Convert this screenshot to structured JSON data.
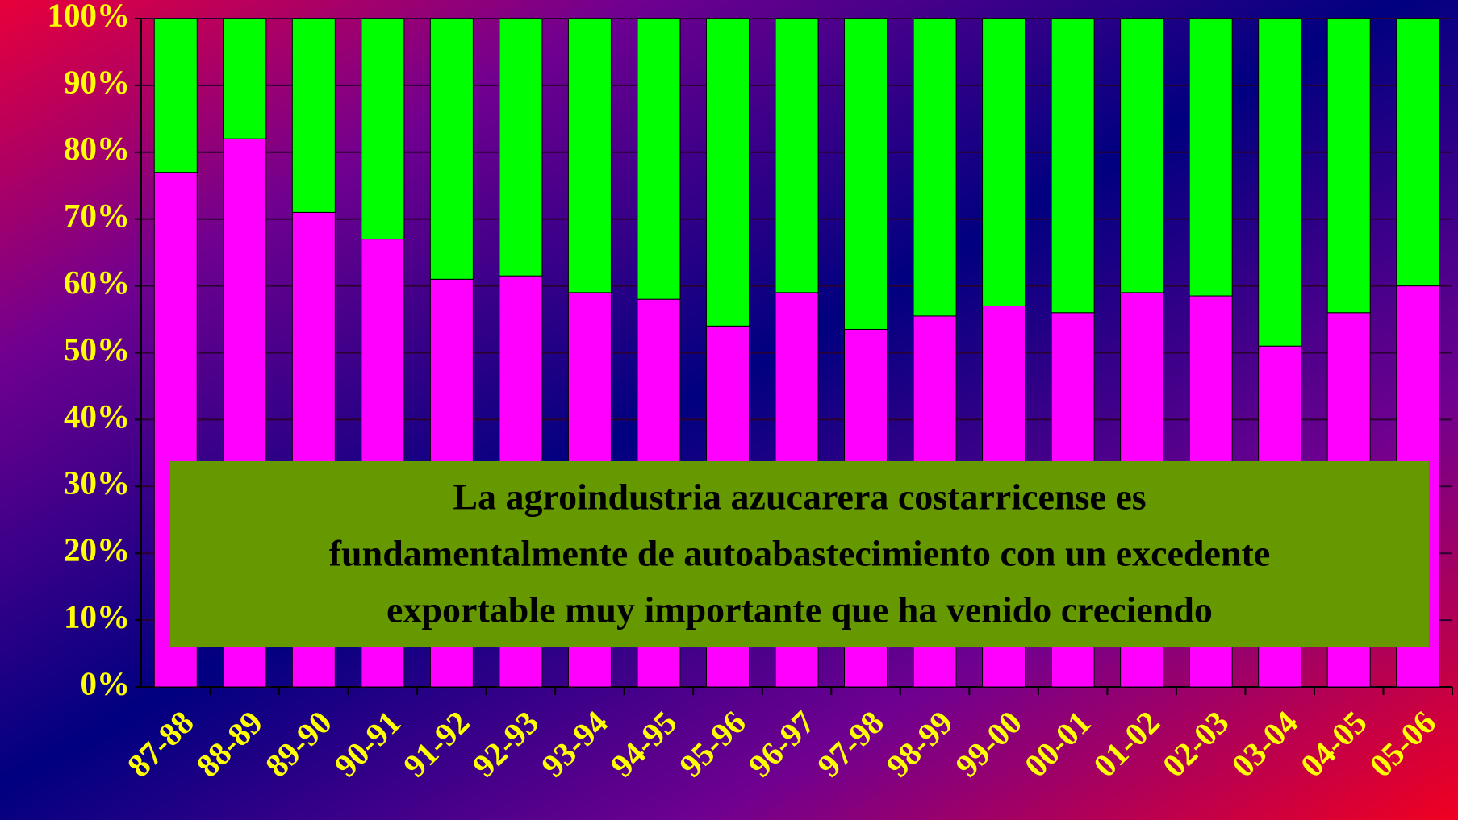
{
  "chart_data": {
    "type": "stacked_bar",
    "categories": [
      "87-88",
      "88-89",
      "89-90",
      "90-91",
      "91-92",
      "92-93",
      "93-94",
      "94-95",
      "95-96",
      "96-97",
      "97-98",
      "98-99",
      "99-00",
      "00-01",
      "01-02",
      "02-03",
      "03-04",
      "04-05",
      "05-06"
    ],
    "series": [
      {
        "color": "#ff00ff",
        "values": [
          77,
          82,
          71,
          67,
          61,
          61.5,
          59,
          58,
          54,
          59,
          53.5,
          55.5,
          57,
          56,
          59,
          58.5,
          51,
          56,
          60
        ]
      },
      {
        "color": "#00ff00",
        "values": [
          23,
          18,
          29,
          33,
          39,
          38.5,
          41,
          42,
          46,
          41,
          46.5,
          44.5,
          43,
          44,
          41,
          41.5,
          49,
          44,
          40
        ]
      }
    ],
    "ylim": [
      0,
      100
    ],
    "yticks": [
      {
        "value": 0,
        "label": "0%"
      },
      {
        "value": 10,
        "label": "10%"
      },
      {
        "value": 20,
        "label": "20%"
      },
      {
        "value": 30,
        "label": "30%"
      },
      {
        "value": 40,
        "label": "40%"
      },
      {
        "value": 50,
        "label": "50%"
      },
      {
        "value": 60,
        "label": "60%"
      },
      {
        "value": 70,
        "label": "70%"
      },
      {
        "value": 80,
        "label": "80%"
      },
      {
        "value": 90,
        "label": "90%"
      },
      {
        "value": 100,
        "label": "100%"
      }
    ],
    "grid": true,
    "annotation": [
      "La agroindustria azucarera costarricense es",
      "fundamentalmente de autoabastecimiento con un excedente",
      "exportable muy importante que ha venido creciendo"
    ],
    "annotation_color": "#669900"
  }
}
